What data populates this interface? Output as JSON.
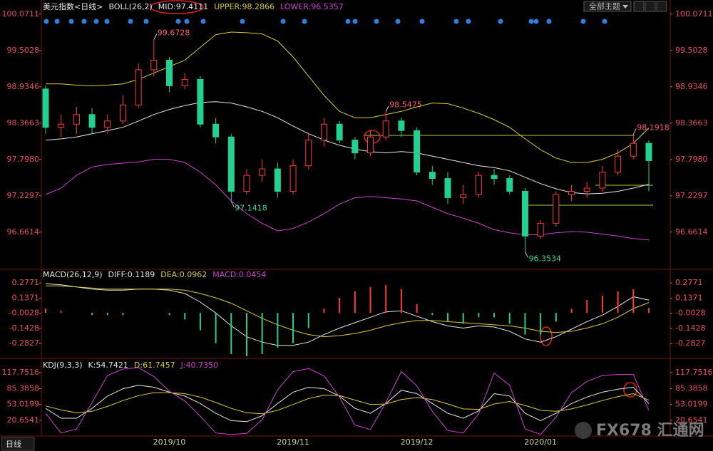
{
  "toolbar": {
    "theme_menu": "全部主题",
    "period": "日线"
  },
  "watermark": "FX678 汇通网",
  "chart_data": [
    {
      "type": "candlestick",
      "title": "美元指数<日线>",
      "indicator": "BOLL(26,2)",
      "categories": [
        null,
        null,
        null,
        null,
        null,
        null,
        null,
        null,
        "2019/10",
        null,
        null,
        null,
        null,
        null,
        null,
        null,
        "2019/11",
        null,
        null,
        null,
        null,
        null,
        null,
        null,
        "2019/12",
        null,
        null,
        null,
        null,
        null,
        null,
        null,
        "2020/01",
        null,
        null,
        null,
        null,
        null,
        null,
        null
      ],
      "open": [
        98.9,
        98.3,
        98.35,
        98.5,
        98.3,
        98.4,
        98.65,
        99.2,
        99.35,
        98.95,
        99.05,
        98.35,
        98.15,
        97.3,
        97.55,
        97.65,
        97.3,
        97.7,
        98.1,
        98.35,
        98.1,
        97.9,
        98.15,
        98.4,
        98.25,
        97.6,
        97.5,
        97.2,
        97.25,
        97.55,
        97.5,
        97.3,
        96.6,
        96.8,
        97.25,
        97.3,
        97.35,
        97.6,
        97.85,
        98.05
      ],
      "high": [
        98.95,
        98.5,
        98.62,
        98.6,
        98.5,
        98.8,
        99.3,
        99.6728,
        99.4,
        99.15,
        99.1,
        98.45,
        98.2,
        97.65,
        97.8,
        97.75,
        97.8,
        98.2,
        98.45,
        98.4,
        98.15,
        98.25,
        98.5475,
        98.45,
        98.3,
        97.7,
        97.6,
        97.4,
        97.6,
        97.65,
        97.55,
        97.35,
        96.85,
        97.3,
        97.4,
        97.45,
        97.7,
        97.95,
        98.1918,
        98.1
      ],
      "low": [
        98.2,
        98.15,
        98.2,
        98.2,
        98.2,
        98.35,
        98.6,
        99.1,
        98.85,
        98.9,
        98.3,
        98.05,
        97.1418,
        97.25,
        97.45,
        97.2,
        97.25,
        97.65,
        98.0,
        98.05,
        97.8,
        97.85,
        98.1,
        98.15,
        97.55,
        97.4,
        97.1,
        97.1,
        97.2,
        97.4,
        97.25,
        96.3534,
        96.55,
        96.75,
        97.15,
        97.2,
        97.3,
        97.55,
        97.8,
        97.3
      ],
      "close": [
        98.3,
        98.35,
        98.5,
        98.3,
        98.4,
        98.65,
        99.2,
        99.35,
        98.95,
        99.05,
        98.35,
        98.15,
        97.3,
        97.55,
        97.65,
        97.3,
        97.7,
        98.1,
        98.35,
        98.1,
        97.9,
        98.15,
        98.4,
        98.25,
        97.6,
        97.5,
        97.2,
        97.25,
        97.55,
        97.5,
        97.3,
        96.6,
        96.8,
        97.25,
        97.3,
        97.35,
        97.6,
        97.85,
        98.05,
        97.78
      ],
      "up_color": "#ff3b3b",
      "down_color": "#22d192",
      "series": [
        {
          "name": "MID:97.4111",
          "color": "#e6e6e6",
          "values": [
            98.1,
            98.12,
            98.15,
            98.2,
            98.25,
            98.3,
            98.4,
            98.5,
            98.58,
            98.64,
            98.69,
            98.7,
            98.68,
            98.62,
            98.55,
            98.45,
            98.32,
            98.2,
            98.1,
            98.02,
            97.96,
            97.92,
            97.9,
            97.92,
            97.9,
            97.85,
            97.8,
            97.75,
            97.7,
            97.67,
            97.62,
            97.52,
            97.42,
            97.34,
            97.28,
            97.26,
            97.27,
            97.3,
            97.35,
            97.41
          ]
        },
        {
          "name": "UPPER:98.2866",
          "color": "#d8cc38",
          "values": [
            98.98,
            98.98,
            98.96,
            98.95,
            98.96,
            98.98,
            99.05,
            99.15,
            99.25,
            99.35,
            99.55,
            99.75,
            99.79,
            99.78,
            99.76,
            99.65,
            99.4,
            99.1,
            98.8,
            98.55,
            98.45,
            98.45,
            98.5,
            98.55,
            98.62,
            98.68,
            98.67,
            98.6,
            98.52,
            98.42,
            98.3,
            98.12,
            97.95,
            97.82,
            97.75,
            97.75,
            97.8,
            97.9,
            98.05,
            98.29
          ]
        },
        {
          "name": "LOWER:96.5357",
          "color": "#d040d0",
          "values": [
            97.25,
            97.35,
            97.55,
            97.68,
            97.72,
            97.74,
            97.76,
            97.8,
            97.8,
            97.75,
            97.6,
            97.4,
            97.15,
            96.95,
            96.8,
            96.68,
            96.72,
            96.82,
            96.95,
            97.1,
            97.2,
            97.22,
            97.2,
            97.18,
            97.15,
            97.05,
            96.95,
            96.88,
            96.8,
            96.7,
            96.65,
            96.62,
            96.62,
            96.65,
            96.67,
            96.66,
            96.63,
            96.6,
            96.56,
            96.54
          ]
        }
      ],
      "ylim": [
        96.08,
        100.18
      ],
      "yticks": [
        100.0711,
        99.5028,
        98.9346,
        98.3663,
        {
          "value": 97.798,
          "label": "97.7980"
        },
        97.2297,
        96.6614
      ],
      "tick_color": "#e8505f",
      "annotations": [
        99.6728,
        97.1418,
        98.5475,
        96.3534,
        98.1918
      ],
      "grid": false
    },
    {
      "type": "line",
      "title": "MACD(26,12,9)",
      "series": [
        {
          "name": "DIFF:0.1189",
          "color": "#e6e6e6",
          "values": [
            0.27,
            0.26,
            0.24,
            0.22,
            0.21,
            0.21,
            0.22,
            0.22,
            0.21,
            0.18,
            0.1,
            0.0,
            -0.12,
            -0.22,
            -0.27,
            -0.3,
            -0.3,
            -0.27,
            -0.2,
            -0.14,
            -0.09,
            -0.04,
            0.01,
            0.02,
            -0.03,
            -0.08,
            -0.12,
            -0.14,
            -0.12,
            -0.13,
            -0.17,
            -0.24,
            -0.27,
            -0.22,
            -0.15,
            -0.08,
            -0.02,
            0.06,
            0.15,
            0.1189
          ]
        },
        {
          "name": "DEA:0.0962",
          "color": "#d8cc38",
          "values": [
            0.25,
            0.25,
            0.24,
            0.23,
            0.22,
            0.22,
            0.22,
            0.22,
            0.22,
            0.21,
            0.18,
            0.14,
            0.09,
            0.02,
            -0.05,
            -0.11,
            -0.16,
            -0.2,
            -0.22,
            -0.21,
            -0.19,
            -0.16,
            -0.12,
            -0.09,
            -0.07,
            -0.07,
            -0.08,
            -0.09,
            -0.1,
            -0.11,
            -0.12,
            -0.14,
            -0.17,
            -0.18,
            -0.17,
            -0.14,
            -0.1,
            -0.04,
            0.04,
            0.0962
          ]
        },
        {
          "name": "MACD:0.0454",
          "type": "bar",
          "color": "#d040d0",
          "up_color": "#ff3b3b",
          "down_color": "#22d192",
          "values": [
            0.04,
            0.02,
            0,
            -0.02,
            -0.02,
            -0.02,
            0,
            0,
            -0.02,
            -0.06,
            -0.16,
            -0.28,
            -0.38,
            -0.4,
            -0.38,
            -0.32,
            -0.28,
            -0.14,
            0.04,
            0.14,
            0.2,
            0.24,
            0.26,
            0.22,
            0.08,
            -0.02,
            -0.08,
            -0.1,
            -0.04,
            -0.04,
            -0.1,
            -0.2,
            -0.2,
            -0.08,
            0.04,
            0.12,
            0.16,
            0.2,
            0.22,
            0.0454
          ]
        }
      ],
      "ylim": [
        -0.42,
        0.39
      ],
      "yticks": [
        0.2771,
        0.1371,
        -0.0028,
        -0.1428,
        -0.2827
      ],
      "tick_color": "#e8505f",
      "grid": false
    },
    {
      "type": "line",
      "title": "KDJ(9,3,3)",
      "series": [
        {
          "name": "K:54.7421",
          "color": "#e6e6e6",
          "values": [
            45,
            25,
            25,
            45,
            70,
            85,
            92,
            88,
            78,
            70,
            55,
            35,
            20,
            18,
            30,
            55,
            78,
            88,
            85,
            70,
            45,
            35,
            55,
            82,
            75,
            55,
            35,
            25,
            40,
            75,
            70,
            35,
            20,
            35,
            55,
            68,
            78,
            84,
            88,
            54.7421
          ]
        },
        {
          "name": "D:61.7457",
          "color": "#d8cc38",
          "values": [
            50,
            42,
            36,
            39,
            49,
            61,
            71,
            77,
            77,
            75,
            68,
            57,
            45,
            36,
            34,
            41,
            53,
            65,
            72,
            71,
            62,
            53,
            54,
            63,
            67,
            63,
            54,
            44,
            43,
            54,
            59,
            51,
            41,
            39,
            44,
            52,
            61,
            69,
            75,
            61.7457
          ]
        },
        {
          "name": "J:40.7350",
          "color": "#d040d0",
          "values": [
            35,
            -5,
            3,
            57,
            112,
            125,
            128,
            110,
            80,
            60,
            29,
            -5,
            -8,
            -6,
            22,
            83,
            120,
            126,
            111,
            68,
            11,
            2,
            57,
            120,
            91,
            39,
            0,
            -5,
            34,
            117,
            92,
            3,
            -8,
            27,
            77,
            100,
            112,
            114,
            114,
            40.735
          ]
        }
      ],
      "ylim": [
        -11.3,
        143.9
      ],
      "yticks": [
        117.7516,
        85.3858,
        53.0199,
        20.6541
      ],
      "tick_color": "#e8505f",
      "grid": false
    }
  ]
}
